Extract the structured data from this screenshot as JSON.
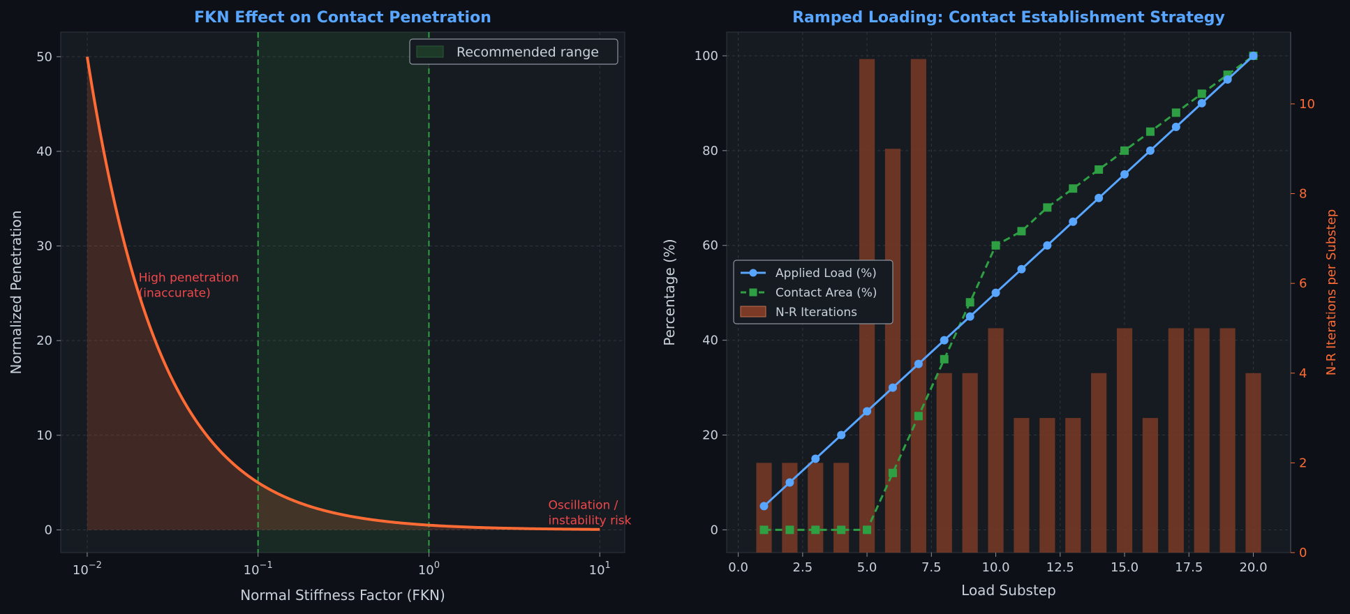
{
  "colors": {
    "background": "#0d1117",
    "panel": "#161b22",
    "title": "#58a6ff",
    "text": "#c9d1d9",
    "orange": "#ff6b35",
    "green": "#2ea043",
    "blue": "#58a6ff",
    "red_annotation": "#f0484a",
    "bar": "#7a3a26"
  },
  "chart_data": [
    {
      "type": "line",
      "title": "FKN Effect on Contact Penetration",
      "xlabel": "Normal Stiffness Factor (FKN)",
      "ylabel": "Normalized Penetration",
      "xscale": "log",
      "xlim": [
        0.007,
        14
      ],
      "ylim": [
        -2.4,
        52.6
      ],
      "xticks": [
        {
          "value": 0.01,
          "base": "10",
          "exp": "−2"
        },
        {
          "value": 0.1,
          "base": "10",
          "exp": "−1"
        },
        {
          "value": 1,
          "base": "10",
          "exp": "0"
        },
        {
          "value": 10,
          "base": "10",
          "exp": "1"
        }
      ],
      "yticks": [
        0,
        10,
        20,
        30,
        40,
        50
      ],
      "grid": true,
      "legend_position": "top-right",
      "series": [
        {
          "formula": "0.5 / FKN",
          "x_range": [
            0.01,
            10
          ],
          "color": "#ff6b35",
          "filled": true
        }
      ],
      "shaded_region": {
        "label": "Recommended range",
        "x_range": [
          0.1,
          1.0
        ]
      },
      "vlines": [
        0.1,
        1.0
      ],
      "annotations": [
        {
          "text": "High penetration\n(inaccurate)",
          "x": 0.02,
          "y": 25
        },
        {
          "text": "Oscillation /\ninstability risk",
          "x": 5,
          "y": 0.5
        }
      ]
    },
    {
      "type": "line",
      "title": "Ramped Loading: Contact Establishment Strategy",
      "xlabel": "Load Substep",
      "ylabel": "Percentage (%)",
      "ylabel_right": "N-R Iterations per Substep",
      "xlim": [
        -0.45,
        21.45
      ],
      "ylim": [
        -4.8,
        105
      ],
      "ylim_right": [
        0,
        11.6
      ],
      "xticks": [
        0.0,
        2.5,
        5.0,
        7.5,
        10.0,
        12.5,
        15.0,
        17.5,
        20.0
      ],
      "yticks": [
        0,
        20,
        40,
        60,
        80,
        100
      ],
      "yticks_right": [
        0,
        2,
        4,
        6,
        8,
        10
      ],
      "grid": true,
      "legend_position": "center-left",
      "x": [
        1,
        2,
        3,
        4,
        5,
        6,
        7,
        8,
        9,
        10,
        11,
        12,
        13,
        14,
        15,
        16,
        17,
        18,
        19,
        20
      ],
      "series": [
        {
          "name": "Applied Load (%)",
          "style": "line-circle",
          "color": "#58a6ff",
          "values": [
            5,
            10,
            15,
            20,
            25,
            30,
            35,
            40,
            45,
            50,
            55,
            60,
            65,
            70,
            75,
            80,
            85,
            90,
            95,
            100
          ]
        },
        {
          "name": "Contact Area (%)",
          "style": "dashed-square",
          "color": "#2ea043",
          "values": [
            0,
            0,
            0,
            0,
            0,
            12,
            24,
            36,
            48,
            60,
            63,
            68,
            72,
            76,
            80,
            84,
            88,
            92,
            96,
            100
          ]
        },
        {
          "name": "N-R Iterations",
          "style": "bar",
          "axis": "right",
          "color": "#7a3a26",
          "values": [
            2,
            2,
            2,
            2,
            11,
            9,
            11,
            4,
            4,
            5,
            3,
            3,
            3,
            4,
            5,
            3,
            5,
            5,
            5,
            4
          ]
        }
      ]
    }
  ]
}
